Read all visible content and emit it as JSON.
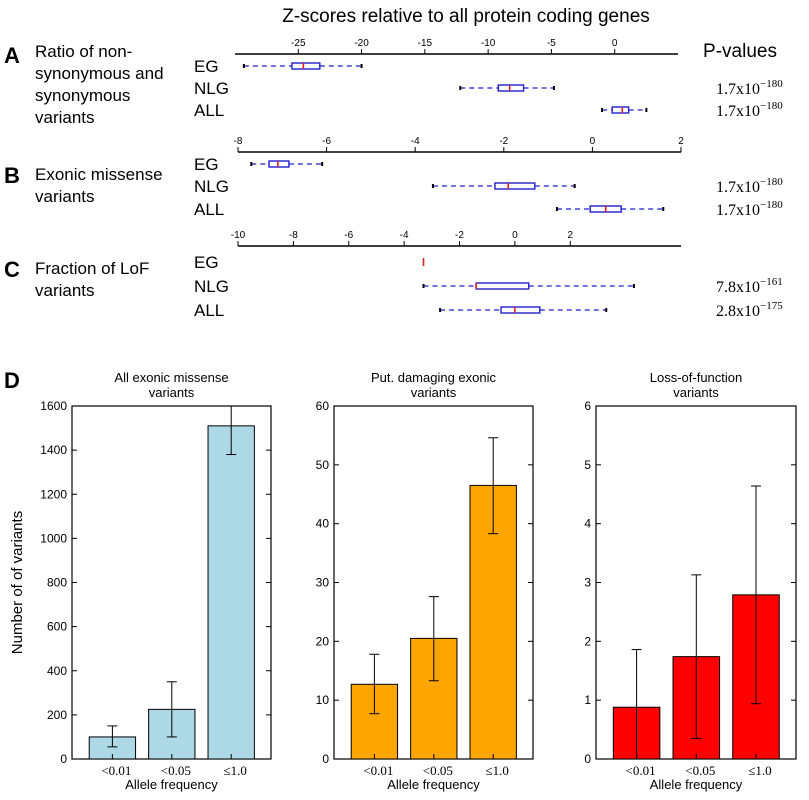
{
  "figure": {
    "top_title": "Z-scores relative to all protein coding genes",
    "pvalues_header": "P-values"
  },
  "colors": {
    "box_edge": "#1f1fd0",
    "whisker": "#1f1fd0",
    "median": "#dd2222",
    "bar_light_blue": "#add8e6",
    "bar_orange": "#ffa500",
    "bar_red": "#ff0000"
  },
  "chart_data": [
    {
      "type": "box",
      "panel": "A",
      "title": "Ratio of non-synonymous and synonymous variants",
      "title_lines": [
        "Ratio of non-",
        "synonymous and",
        "synonymous",
        "variants"
      ],
      "xlim": [
        -30,
        5
      ],
      "ticks": [
        -25,
        -20,
        -15,
        -10,
        -5,
        0
      ],
      "tick_labels": [
        "-25",
        "-20",
        "-15",
        "-10",
        "-5",
        "0"
      ],
      "groups": [
        {
          "name": "EG",
          "whisker_low": -29.3,
          "q1": -25.5,
          "median": -24.6,
          "q3": -23.3,
          "whisker_high": -20.0,
          "pvalue": ""
        },
        {
          "name": "NLG",
          "whisker_low": -12.2,
          "q1": -9.2,
          "median": -8.3,
          "q3": -7.2,
          "whisker_high": -4.8,
          "pvalue": "1.7x10",
          "pvalue_exp": "−180"
        },
        {
          "name": "ALL",
          "whisker_low": -1.0,
          "q1": -0.2,
          "median": 0.6,
          "q3": 1.1,
          "whisker_high": 2.5,
          "pvalue": "1.7x10",
          "pvalue_exp": "−180"
        }
      ]
    },
    {
      "type": "box",
      "panel": "B",
      "title": "Exonic missense variants",
      "title_lines": [
        "Exonic missense",
        "variants"
      ],
      "xlim": [
        -8,
        2
      ],
      "ticks": [
        -8,
        -6,
        -4,
        -2,
        0,
        2
      ],
      "tick_labels": [
        "-8",
        "-6",
        "-4",
        "-2",
        "0",
        "2"
      ],
      "groups": [
        {
          "name": "EG",
          "whisker_low": -7.7,
          "q1": -7.3,
          "median": -7.1,
          "q3": -6.85,
          "whisker_high": -6.1,
          "pvalue": ""
        },
        {
          "name": "NLG",
          "whisker_low": -3.6,
          "q1": -2.2,
          "median": -1.9,
          "q3": -1.3,
          "whisker_high": -0.4,
          "pvalue": "1.7x10",
          "pvalue_exp": "−180"
        },
        {
          "name": "ALL",
          "whisker_low": -0.8,
          "q1": -0.05,
          "median": 0.3,
          "q3": 0.65,
          "whisker_high": 1.6,
          "pvalue": "1.7x10",
          "pvalue_exp": "−180"
        }
      ]
    },
    {
      "type": "box",
      "panel": "C",
      "title": "Fraction of LoF variants",
      "title_lines": [
        "Fraction of LoF",
        "variants"
      ],
      "xlim": [
        -10,
        6
      ],
      "ticks": [
        -10,
        -8,
        -6,
        -4,
        -2,
        0,
        2
      ],
      "tick_labels": [
        "-10",
        "-8",
        "-6",
        "-4",
        "-2",
        "0",
        "2"
      ],
      "groups": [
        {
          "name": "EG",
          "whisker_low": -3.3,
          "q1": -3.3,
          "median": -3.3,
          "q3": -3.3,
          "whisker_high": -3.3,
          "pvalue": ""
        },
        {
          "name": "NLG",
          "whisker_low": -3.3,
          "q1": -1.4,
          "median": -1.4,
          "q3": 0.5,
          "whisker_high": 4.3,
          "pvalue": "7.8x10",
          "pvalue_exp": "−161"
        },
        {
          "name": "ALL",
          "whisker_low": -2.7,
          "q1": -0.5,
          "median": 0.0,
          "q3": 0.9,
          "whisker_high": 3.3,
          "pvalue": "2.8x10",
          "pvalue_exp": "−175"
        }
      ]
    },
    {
      "type": "bar",
      "panel": "D",
      "title": "All exonic missense variants",
      "title_lines": [
        "All exonic missense",
        "variants"
      ],
      "categories": [
        "<0.01",
        "<0.05",
        "≤1.0"
      ],
      "values": [
        100,
        225,
        1510
      ],
      "error_low": [
        55,
        100,
        1380
      ],
      "error_high": [
        150,
        350,
        1600
      ],
      "ylim": [
        0,
        1600
      ],
      "yticks": [
        0,
        200,
        400,
        600,
        800,
        1000,
        1200,
        1400,
        1600
      ],
      "ylabel": "Number of of variants",
      "xlabel": "Allele frequency",
      "color": "#add8e6"
    },
    {
      "type": "bar",
      "panel": "D",
      "title": "Put. damaging exonic variants",
      "title_lines": [
        "Put. damaging exonic",
        "variants"
      ],
      "categories": [
        "<0.01",
        "<0.05",
        "≤1.0"
      ],
      "values": [
        12.7,
        20.5,
        46.5
      ],
      "error_low": [
        7.7,
        13.3,
        38.3
      ],
      "error_high": [
        17.8,
        27.6,
        54.6
      ],
      "ylim": [
        0,
        60
      ],
      "yticks": [
        0,
        10,
        20,
        30,
        40,
        50,
        60
      ],
      "ylabel": "",
      "xlabel": "Allele frequency",
      "color": "#ffa500"
    },
    {
      "type": "bar",
      "panel": "D",
      "title": "Loss-of-function variants",
      "title_lines": [
        "Loss-of-function",
        "variants"
      ],
      "categories": [
        "<0.01",
        "<0.05",
        "≤1.0"
      ],
      "values": [
        0.88,
        1.74,
        2.79
      ],
      "error_low": [
        0.0,
        0.35,
        0.94
      ],
      "error_high": [
        1.86,
        3.13,
        4.64
      ],
      "ylim": [
        0,
        6
      ],
      "yticks": [
        0,
        1,
        2,
        3,
        4,
        5,
        6
      ],
      "ylabel": "",
      "xlabel": "Allele frequency",
      "color": "#ff0000"
    }
  ]
}
